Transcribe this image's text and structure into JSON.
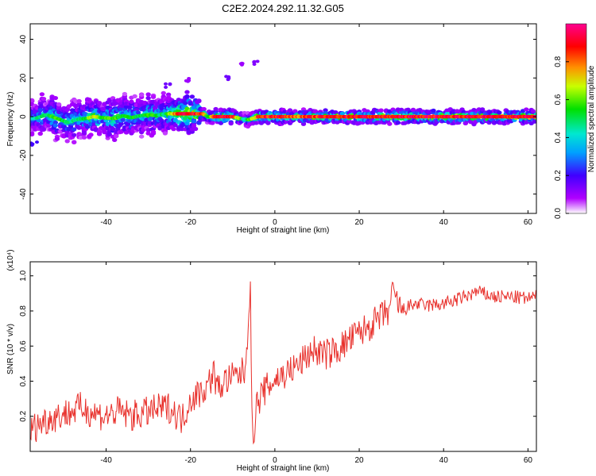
{
  "title": "C2E2.2024.292.11.32.G05",
  "chart_data": [
    {
      "type": "heatmap",
      "xlabel": "Height of straight line (km)",
      "ylabel": "Frequency (Hz)",
      "xlim": [
        -58,
        62
      ],
      "ylim": [
        -50,
        48
      ],
      "xticks": [
        -40,
        -20,
        0,
        20,
        40,
        60
      ],
      "yticks": [
        -40,
        -20,
        0,
        20,
        40
      ],
      "colorbar": {
        "label": "Normalized spectral amplitude",
        "range": [
          0,
          1
        ],
        "ticks": [
          "0.0",
          "0.2",
          "0.4",
          "0.6",
          "0.8"
        ]
      },
      "ridge": [
        {
          "x": -57,
          "y": -1.0,
          "a": 0.45
        },
        {
          "x": -54,
          "y": 1.0,
          "a": 0.55
        },
        {
          "x": -51,
          "y": -1.5,
          "a": 0.6
        },
        {
          "x": -49,
          "y": -3.0,
          "a": 0.5
        },
        {
          "x": -47,
          "y": -1.5,
          "a": 0.5
        },
        {
          "x": -45,
          "y": -1.0,
          "a": 0.55
        },
        {
          "x": -43,
          "y": 0.0,
          "a": 0.75
        },
        {
          "x": -41,
          "y": -0.5,
          "a": 0.6
        },
        {
          "x": -38,
          "y": -1.0,
          "a": 0.6
        },
        {
          "x": -36,
          "y": 0.5,
          "a": 0.55
        },
        {
          "x": -34,
          "y": -0.5,
          "a": 0.6
        },
        {
          "x": -32,
          "y": 0.5,
          "a": 0.55
        },
        {
          "x": -30,
          "y": 1.0,
          "a": 0.6
        },
        {
          "x": -28,
          "y": 0.5,
          "a": 0.55
        },
        {
          "x": -26,
          "y": 1.5,
          "a": 0.5
        },
        {
          "x": -23,
          "y": 1.5,
          "a": 0.9
        },
        {
          "x": -20,
          "y": 1.5,
          "a": 0.95
        },
        {
          "x": -17,
          "y": 1.5,
          "a": 0.9
        },
        {
          "x": -16,
          "y": 0.0,
          "a": 0.5
        },
        {
          "x": -14,
          "y": 0.0,
          "a": 0.95
        },
        {
          "x": -10,
          "y": 0.0,
          "a": 0.95
        },
        {
          "x": -7,
          "y": -1.5,
          "a": 0.4
        },
        {
          "x": -6,
          "y": -1.5,
          "a": 0.6
        },
        {
          "x": -4,
          "y": 0.0,
          "a": 0.9
        },
        {
          "x": 0,
          "y": 0.0,
          "a": 0.95
        },
        {
          "x": 5,
          "y": 0.0,
          "a": 0.85
        },
        {
          "x": 10,
          "y": 0.0,
          "a": 0.9
        },
        {
          "x": 20,
          "y": 0.0,
          "a": 0.95
        },
        {
          "x": 26,
          "y": 0.0,
          "a": 0.9
        },
        {
          "x": 30,
          "y": 0.0,
          "a": 0.95
        },
        {
          "x": 40,
          "y": 0.0,
          "a": 0.95
        },
        {
          "x": 50,
          "y": 0.0,
          "a": 0.95
        },
        {
          "x": 62,
          "y": 0.0,
          "a": 0.95
        }
      ],
      "outliers": [
        {
          "x": -25,
          "y": 16,
          "a": 0.1
        },
        {
          "x": -21,
          "y": 19,
          "a": 0.05
        },
        {
          "x": -11,
          "y": 20,
          "a": 0.1
        },
        {
          "x": -5,
          "y": 28,
          "a": 0.08
        },
        {
          "x": -8,
          "y": 27,
          "a": 0.05
        },
        {
          "x": -57,
          "y": -14,
          "a": 0.15
        }
      ]
    },
    {
      "type": "line",
      "xlabel": "Height of straight line (km)",
      "ylabel": "SNR (10 * v/v)",
      "yexponent": "(x10⁴)",
      "xlim": [
        -58,
        62
      ],
      "ylim": [
        0,
        1.08
      ],
      "xticks": [
        -40,
        -20,
        0,
        20,
        40,
        60
      ],
      "yticks": [
        "0.2",
        "0.4",
        "0.6",
        "0.8",
        "1.0"
      ],
      "color": "#e8302b",
      "series": [
        {
          "x": [
            -58,
            -55,
            -52,
            -49,
            -46,
            -43,
            -40,
            -37,
            -34,
            -31,
            -28,
            -25,
            -22,
            -20,
            -18,
            -16,
            -14.5,
            -13.5,
            -12,
            -9,
            -7,
            -5.8,
            -5.5,
            -5.2,
            -4.5,
            -3,
            0,
            3,
            6,
            9,
            12,
            15,
            18,
            21,
            24,
            27,
            28,
            30,
            33,
            36,
            40,
            44,
            48,
            52,
            56,
            60,
            62
          ],
          "values": [
            0.12,
            0.17,
            0.2,
            0.22,
            0.25,
            0.22,
            0.2,
            0.23,
            0.2,
            0.22,
            0.24,
            0.25,
            0.18,
            0.3,
            0.33,
            0.37,
            0.45,
            0.35,
            0.4,
            0.43,
            0.46,
            0.98,
            0.2,
            0.05,
            0.25,
            0.33,
            0.41,
            0.45,
            0.5,
            0.58,
            0.55,
            0.58,
            0.64,
            0.69,
            0.74,
            0.8,
            0.9,
            0.8,
            0.84,
            0.83,
            0.84,
            0.87,
            0.91,
            0.88,
            0.88,
            0.87,
            0.88
          ]
        }
      ]
    }
  ]
}
